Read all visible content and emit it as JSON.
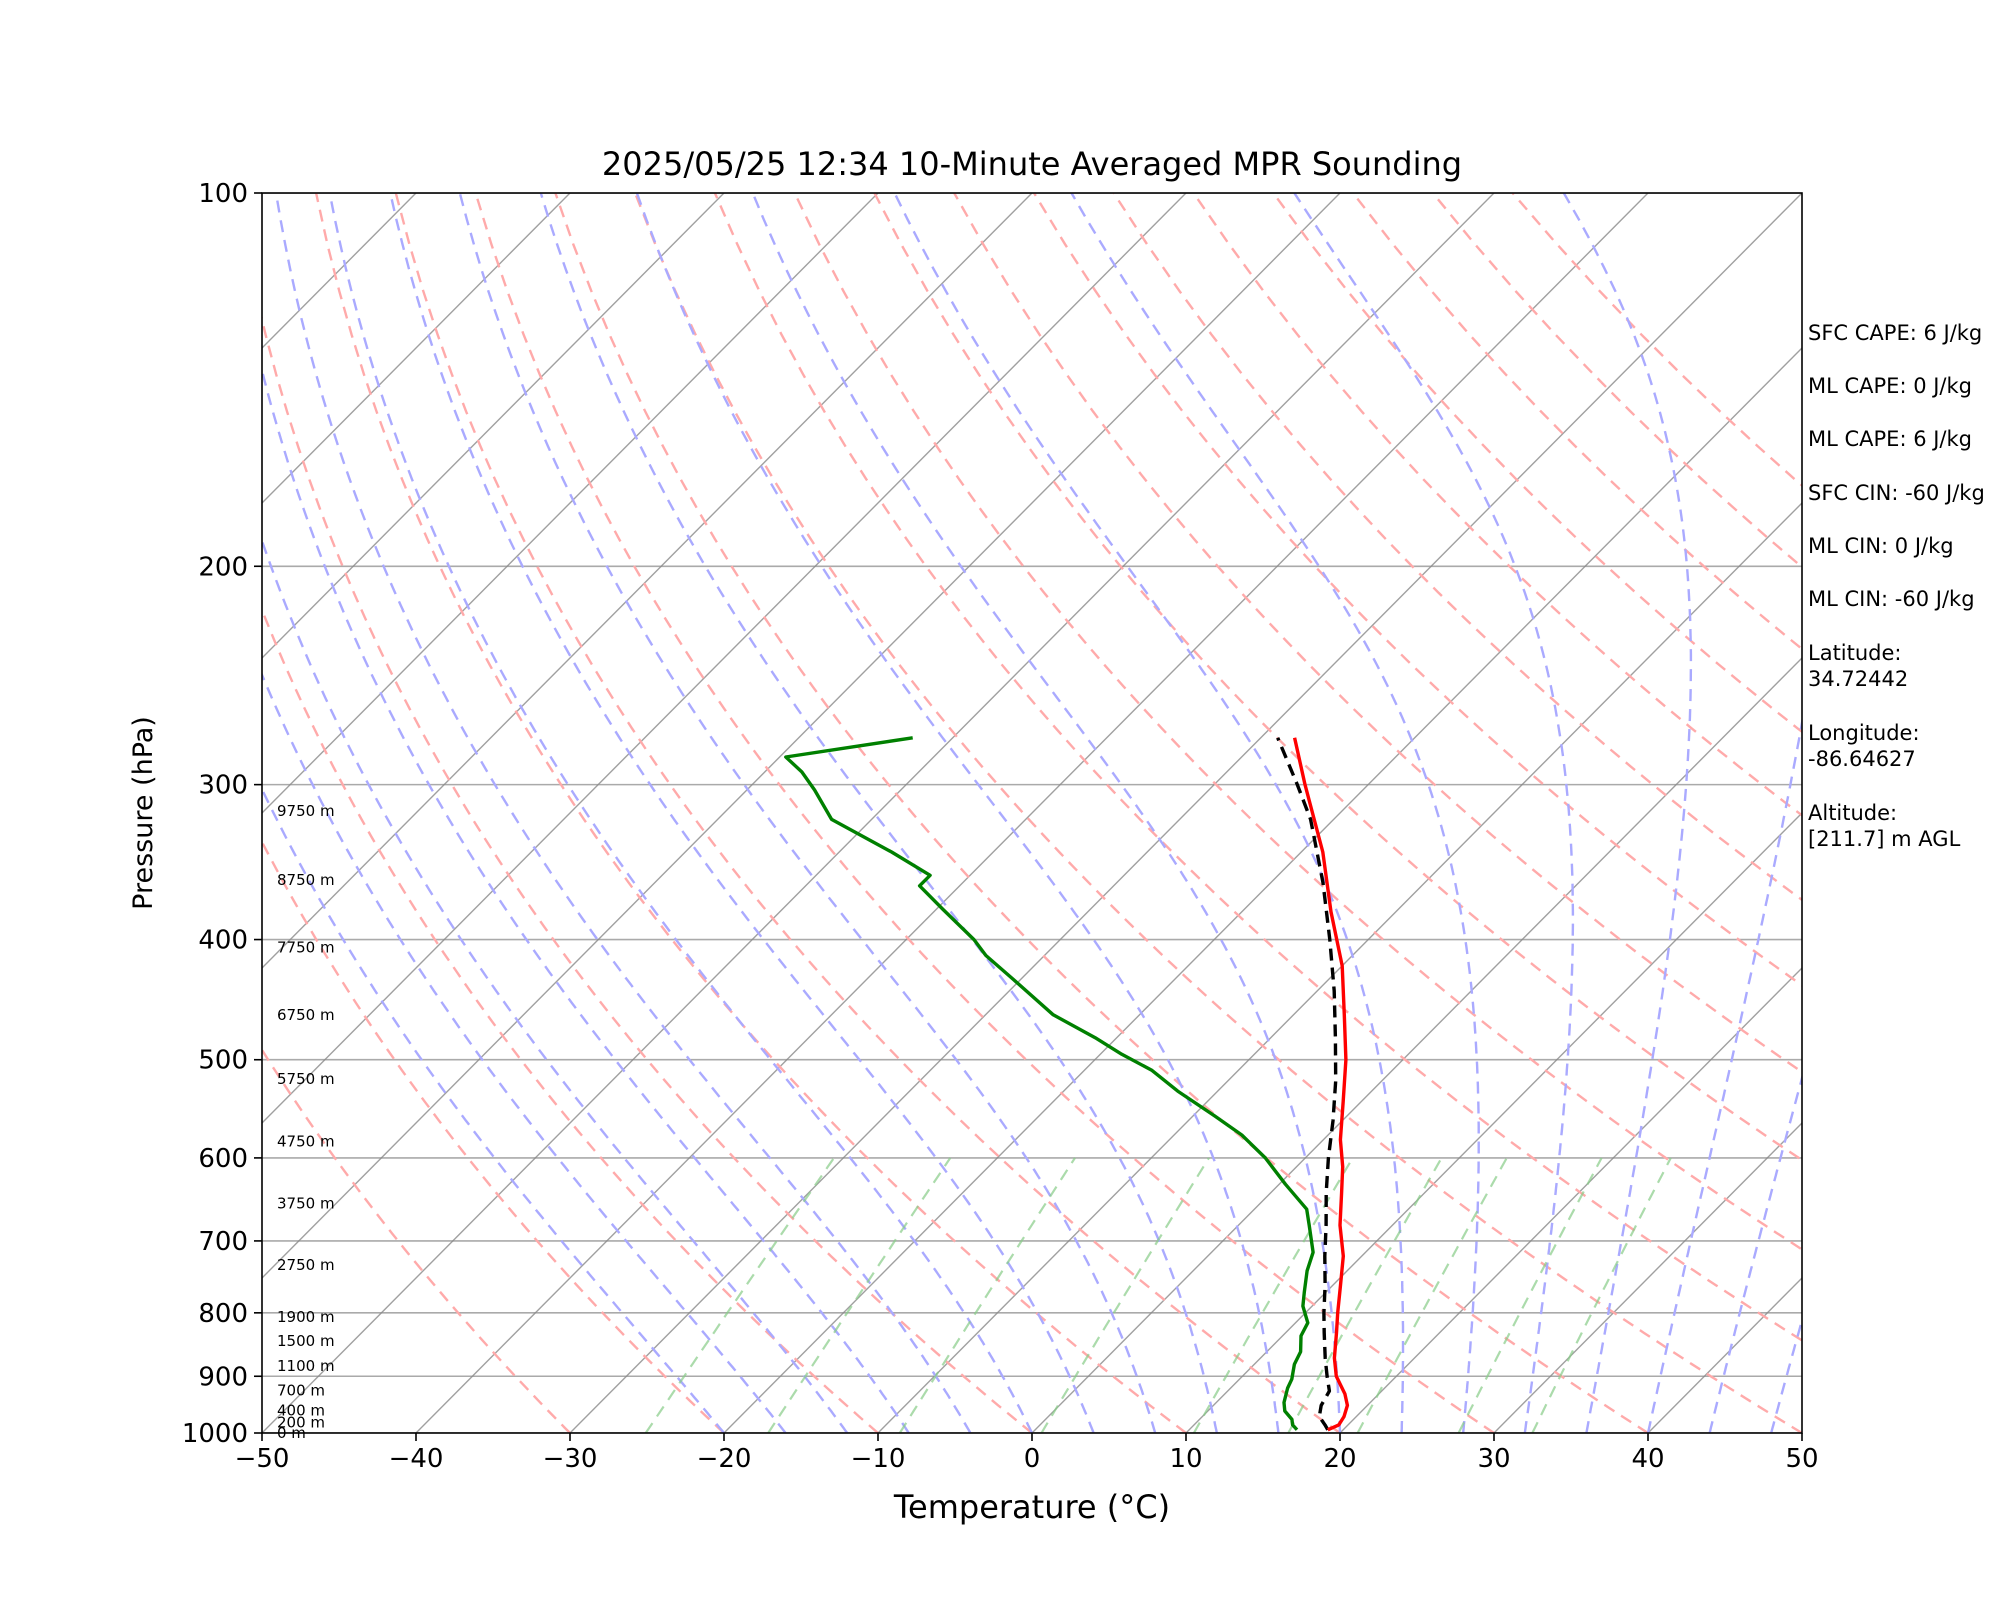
{
  "chart_data": {
    "type": "skew-t",
    "title": "2025/05/25 12:34 10-Minute Averaged MPR Sounding",
    "xlabel": "Temperature (°C)",
    "ylabel": "Pressure (hPa)",
    "xlim": [
      -50,
      50
    ],
    "ylim": [
      1000,
      100
    ],
    "y_scale": "log",
    "x_ticks": [
      -50,
      -40,
      -30,
      -20,
      -10,
      0,
      10,
      20,
      30,
      40,
      50
    ],
    "x_tick_labels": [
      "−50",
      "−40",
      "−30",
      "−20",
      "−10",
      "0",
      "10",
      "20",
      "30",
      "40",
      "50"
    ],
    "y_ticks": [
      1000,
      900,
      800,
      700,
      600,
      500,
      400,
      300,
      200,
      100
    ],
    "y_tick_labels": [
      "1000",
      "900",
      "800",
      "700",
      "600",
      "500",
      "400",
      "300",
      "200",
      "100"
    ],
    "grid": true,
    "colors": {
      "temperature": "#ff0000",
      "dewpoint": "#008000",
      "parcel": "#000000",
      "dry_adiabat": "#ffaaaa",
      "moist_adiabat": "#aaaaff",
      "mixing_ratio": "#88cc88",
      "isotherm": "#888888"
    },
    "temperature": {
      "pressure": [
        994,
        985,
        970,
        950,
        930,
        900,
        870,
        830,
        800,
        760,
        720,
        680,
        640,
        610,
        580,
        540,
        500,
        460,
        420,
        380,
        340,
        300,
        275
      ],
      "values": [
        19.0,
        19.4,
        19.2,
        18.7,
        17.8,
        16.1,
        14.8,
        13.3,
        12.1,
        10.5,
        8.8,
        6.6,
        4.6,
        3.0,
        1.1,
        -1.2,
        -3.7,
        -6.7,
        -10.0,
        -14.2,
        -18.6,
        -24.1,
        -27.8
      ]
    },
    "dewpoint": {
      "pressure": [
        994,
        985,
        975,
        960,
        945,
        920,
        905,
        880,
        860,
        835,
        815,
        790,
        770,
        740,
        715,
        680,
        660,
        630,
        600,
        575,
        555,
        530,
        510,
        495,
        480,
        460,
        430,
        412,
        400,
        378,
        362,
        355,
        340,
        320,
        303,
        293,
        285,
        275
      ],
      "values": [
        17.0,
        16.4,
        16.0,
        15.0,
        14.4,
        13.7,
        13.4,
        12.6,
        12.2,
        11.2,
        10.8,
        9.4,
        8.6,
        7.4,
        6.6,
        4.6,
        3.4,
        0.4,
        -2.6,
        -5.6,
        -8.6,
        -12.6,
        -15.6,
        -18.6,
        -21.4,
        -25.6,
        -30.6,
        -33.8,
        -35.6,
        -39.6,
        -42.6,
        -42.6,
        -46.6,
        -52.6,
        -55.6,
        -57.6,
        -59.6,
        -52.6
      ]
    },
    "parcel": {
      "pressure": [
        994,
        985,
        970,
        950,
        925,
        900,
        870,
        830,
        800,
        760,
        720,
        680,
        640,
        600,
        560,
        520,
        480,
        440,
        400,
        360,
        320,
        300,
        275
      ],
      "values": [
        19.0,
        18.5,
        17.6,
        17.0,
        16.6,
        15.5,
        14.2,
        12.5,
        11.2,
        9.5,
        7.6,
        5.7,
        3.6,
        1.5,
        -0.6,
        -3.0,
        -5.8,
        -8.9,
        -12.5,
        -16.6,
        -21.5,
        -24.6,
        -28.9
      ]
    },
    "dry_adiabats_theta_c": [
      -30,
      -20,
      -10,
      0,
      10,
      20,
      30,
      40,
      50,
      60,
      70,
      80,
      90,
      100,
      110,
      120,
      130,
      140,
      150,
      160
    ],
    "moist_adiabats_start_c": [
      -20,
      -16,
      -12,
      -8,
      -4,
      0,
      4,
      8,
      12,
      16,
      20,
      24,
      28,
      32,
      36,
      40,
      44,
      48
    ],
    "mixing_ratio_lines_gkg": [
      0.5,
      1,
      2,
      4,
      8,
      12,
      16,
      24,
      32
    ],
    "height_labels": [
      {
        "label": "0 m",
        "pressure": 1000
      },
      {
        "label": "200 m",
        "pressure": 981
      },
      {
        "label": "400 m",
        "pressure": 959
      },
      {
        "label": "700 m",
        "pressure": 924
      },
      {
        "label": "1100 m",
        "pressure": 883
      },
      {
        "label": "1500 m",
        "pressure": 843
      },
      {
        "label": "1900 m",
        "pressure": 806
      },
      {
        "label": "2750 m",
        "pressure": 732
      },
      {
        "label": "3750 m",
        "pressure": 653
      },
      {
        "label": "4750 m",
        "pressure": 582
      },
      {
        "label": "5750 m",
        "pressure": 518
      },
      {
        "label": "6750 m",
        "pressure": 460
      },
      {
        "label": "7750 m",
        "pressure": 406
      },
      {
        "label": "8750 m",
        "pressure": 358
      },
      {
        "label": "9750 m",
        "pressure": 315
      }
    ]
  },
  "side_info": {
    "sfc_cape": "SFC CAPE: 6 J/kg",
    "ml_cape_1": "ML CAPE: 0 J/kg",
    "ml_cape_2": "ML CAPE: 6 J/kg",
    "sfc_cin": "SFC CIN: -60 J/kg",
    "ml_cin_1": "ML CIN: 0 J/kg",
    "ml_cin_2": "ML CIN: -60 J/kg",
    "latitude_label": "Latitude:",
    "latitude_value": "34.72442",
    "longitude_label": "Longitude:",
    "longitude_value": "-86.64627",
    "altitude_label": "Altitude:",
    "altitude_value": "[211.7] m AGL"
  }
}
